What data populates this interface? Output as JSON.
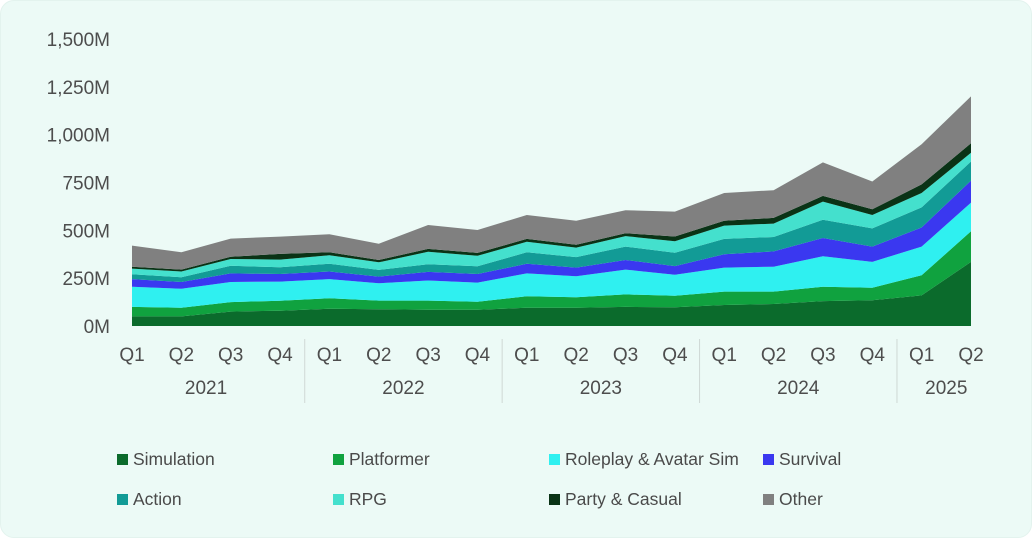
{
  "chart_data": {
    "type": "area",
    "stacked": true,
    "title": "",
    "xlabel": "",
    "ylabel": "",
    "ylim": [
      0,
      1500
    ],
    "y_unit": "M",
    "y_ticks": [
      "0M",
      "250M",
      "500M",
      "750M",
      "1,000M",
      "1,250M",
      "1,500M"
    ],
    "y_tick_values": [
      0,
      250,
      500,
      750,
      1000,
      1250,
      1500
    ],
    "grid": false,
    "legend_position": "bottom",
    "categories": [
      "Q1 2021",
      "Q2 2021",
      "Q3 2021",
      "Q4 2021",
      "Q1 2022",
      "Q2 2022",
      "Q3 2022",
      "Q4 2022",
      "Q1 2023",
      "Q2 2023",
      "Q3 2023",
      "Q4 2023",
      "Q1 2024",
      "Q2 2024",
      "Q3 2024",
      "Q4 2024",
      "Q1 2025",
      "Q2 2025"
    ],
    "quarter_labels": [
      "Q1",
      "Q2",
      "Q3",
      "Q4",
      "Q1",
      "Q2",
      "Q3",
      "Q4",
      "Q1",
      "Q2",
      "Q3",
      "Q4",
      "Q1",
      "Q2",
      "Q3",
      "Q4",
      "Q1",
      "Q2"
    ],
    "year_groups": [
      {
        "label": "2021",
        "start": 0,
        "end": 3
      },
      {
        "label": "2022",
        "start": 4,
        "end": 7
      },
      {
        "label": "2023",
        "start": 8,
        "end": 11
      },
      {
        "label": "2024",
        "start": 12,
        "end": 15
      },
      {
        "label": "2025",
        "start": 16,
        "end": 17
      }
    ],
    "series": [
      {
        "name": "Simulation",
        "color": "#0b6b2c",
        "values": [
          50,
          50,
          75,
          80,
          90,
          88,
          85,
          85,
          95,
          95,
          100,
          98,
          110,
          115,
          130,
          135,
          160,
          335
        ]
      },
      {
        "name": "Platformer",
        "color": "#10a23f",
        "values": [
          50,
          45,
          50,
          52,
          55,
          45,
          48,
          42,
          60,
          55,
          65,
          60,
          70,
          65,
          75,
          65,
          105,
          160
        ]
      },
      {
        "name": "Roleplay & Avatar Sim",
        "color": "#2ff0f0",
        "values": [
          105,
          100,
          105,
          100,
          100,
          90,
          105,
          100,
          120,
          110,
          130,
          110,
          125,
          130,
          160,
          135,
          150,
          150
        ]
      },
      {
        "name": "Survival",
        "color": "#3a38f0",
        "values": [
          40,
          35,
          45,
          40,
          40,
          35,
          45,
          45,
          50,
          45,
          50,
          45,
          70,
          80,
          95,
          80,
          100,
          115
        ]
      },
      {
        "name": "Action",
        "color": "#129b96",
        "values": [
          25,
          25,
          40,
          35,
          40,
          35,
          40,
          40,
          60,
          55,
          70,
          70,
          80,
          75,
          95,
          95,
          105,
          100
        ]
      },
      {
        "name": "RPG",
        "color": "#44e0cd",
        "values": [
          30,
          30,
          35,
          40,
          45,
          40,
          65,
          55,
          55,
          50,
          55,
          60,
          70,
          70,
          95,
          70,
          75,
          45
        ]
      },
      {
        "name": "Party & Casual",
        "color": "#0a3316",
        "values": [
          10,
          10,
          12,
          30,
          15,
          12,
          15,
          15,
          15,
          15,
          15,
          25,
          25,
          30,
          30,
          30,
          45,
          50
        ]
      },
      {
        "name": "Other",
        "color": "#808080",
        "values": [
          110,
          90,
          95,
          90,
          95,
          85,
          125,
          120,
          125,
          125,
          120,
          130,
          145,
          145,
          175,
          145,
          210,
          245
        ]
      }
    ]
  }
}
